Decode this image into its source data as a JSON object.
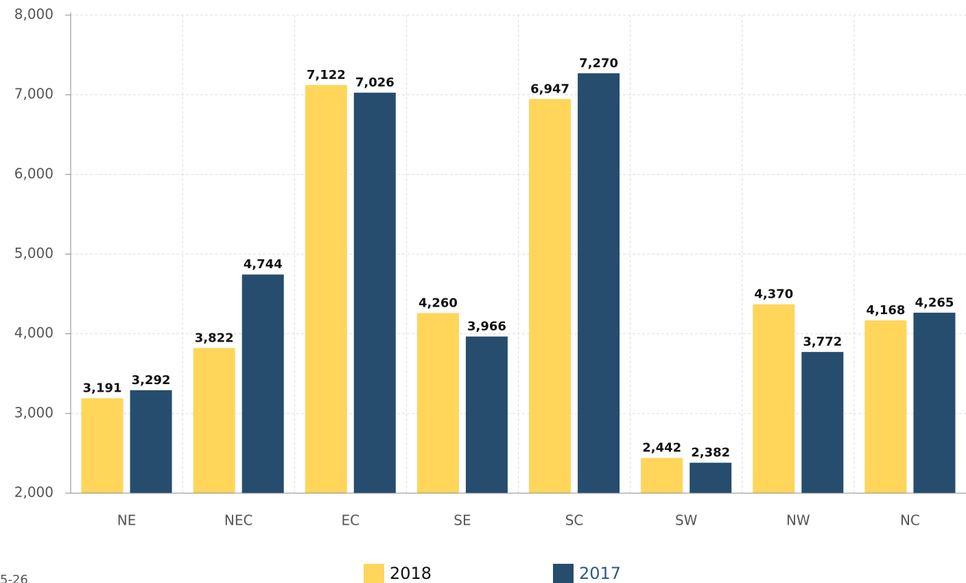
{
  "chart_data": {
    "type": "bar",
    "categories": [
      "NE",
      "NEC",
      "EC",
      "SE",
      "SC",
      "SW",
      "NW",
      "NC"
    ],
    "series": [
      {
        "name": "2018",
        "color": "#FFD55A",
        "values": [
          3191,
          3822,
          7122,
          4260,
          6947,
          2442,
          4370,
          4168
        ],
        "value_labels": [
          "3,191",
          "3,822",
          "7,122",
          "4,260",
          "6,947",
          "2,442",
          "4,370",
          "4,168"
        ]
      },
      {
        "name": "2017",
        "color": "#264D6E",
        "values": [
          3292,
          4744,
          7026,
          3966,
          7270,
          2382,
          3772,
          4265
        ],
        "value_labels": [
          "3,292",
          "4,744",
          "7,026",
          "3,966",
          "7,270",
          "2,382",
          "3,772",
          "4,265"
        ]
      }
    ],
    "ylim": [
      2000,
      8000
    ],
    "yticks": [
      {
        "value": 2000,
        "label": "2,000"
      },
      {
        "value": 3000,
        "label": "3,000"
      },
      {
        "value": 4000,
        "label": "4,000"
      },
      {
        "value": 5000,
        "label": "5,000"
      },
      {
        "value": 6000,
        "label": "6,000"
      },
      {
        "value": 7000,
        "label": "7,000"
      },
      {
        "value": 8000,
        "label": "8,000"
      }
    ],
    "grid": true,
    "legend": "bottom",
    "annotation": "5-26"
  }
}
